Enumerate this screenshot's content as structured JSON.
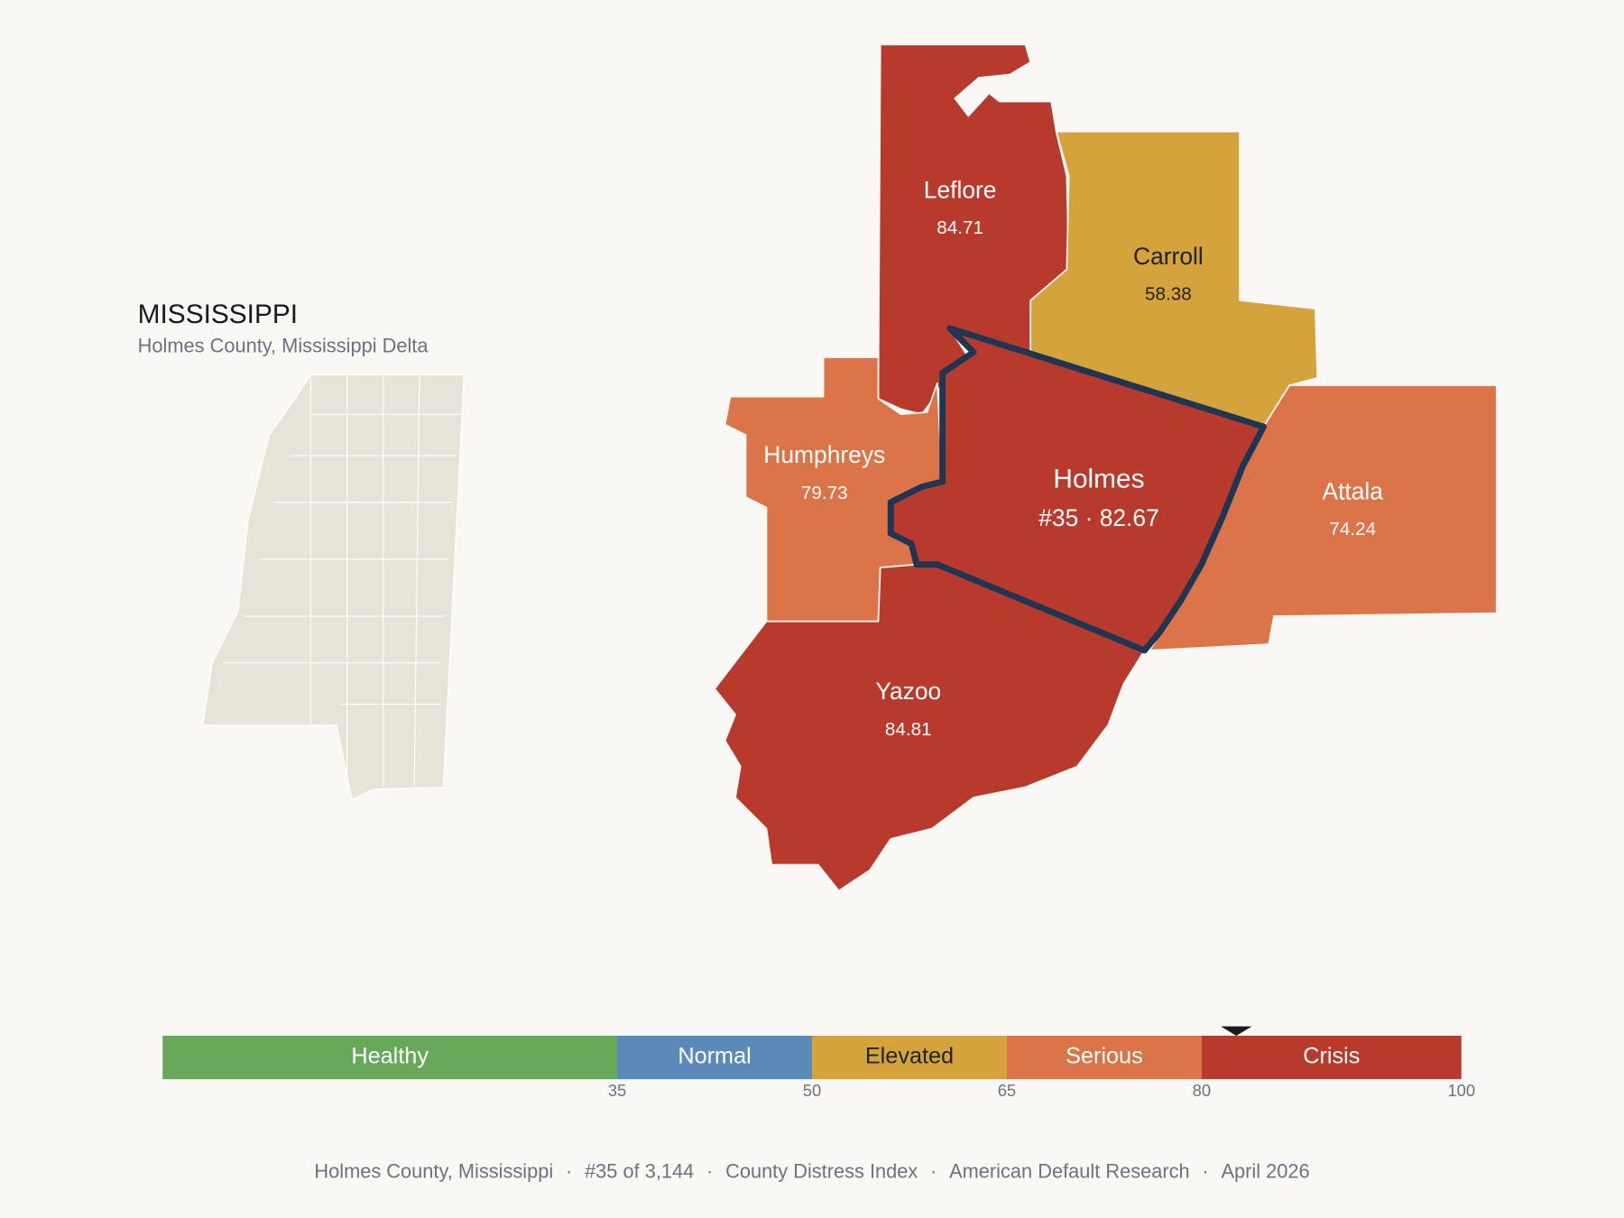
{
  "map": {
    "title": "MISSISSIPPI",
    "subtitle": "Holmes County, Mississippi Delta",
    "counties": [
      {
        "name": "Leflore",
        "value": 84.71
      },
      {
        "name": "Carroll",
        "value": 58.38
      },
      {
        "name": "Humphreys",
        "value": 79.73
      },
      {
        "name": "Attala",
        "value": 74.24
      },
      {
        "name": "Yazoo",
        "value": 84.81
      },
      {
        "name": "Holmes",
        "value": 82.67,
        "value_label": "#35 · 82.67",
        "highlight": true
      }
    ]
  },
  "scale": {
    "range": [
      0,
      100
    ],
    "ticks": [
      35,
      50,
      65,
      80,
      100
    ],
    "bands": [
      {
        "name": "Healthy",
        "color": "#67a85a",
        "text_color": "#ffffff"
      },
      {
        "name": "Normal",
        "color": "#5b8aba",
        "text_color": "#ffffff"
      },
      {
        "name": "Elevated",
        "color": "#d4a33c",
        "text_color": "#222222"
      },
      {
        "name": "Serious",
        "color": "#dc744a",
        "text_color": "#ffffff"
      },
      {
        "name": "Crisis",
        "color": "#b83a2c",
        "text_color": "#ffffff"
      }
    ]
  },
  "footer": {
    "items": [
      "Holmes County, Mississippi",
      "#35 of 3,144",
      "County Distress Index",
      "American Default Research",
      "April 2026"
    ],
    "separator": "·"
  }
}
